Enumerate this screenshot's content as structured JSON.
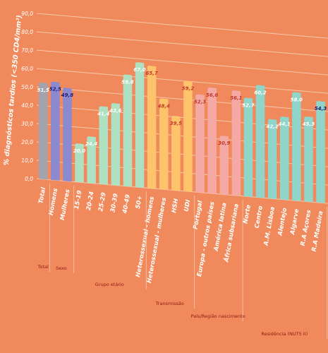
{
  "chart_data": {
    "type": "bar",
    "title": "",
    "ylabel": "% diagnósticos tardios (<350 CD4/mm³)",
    "xlabel": "",
    "ylim": [
      0,
      90
    ],
    "y_ticks": [
      "0,0",
      "10,0",
      "20,0",
      "30,0",
      "40,0",
      "50,0",
      "60,0",
      "70,0",
      "80,0",
      "90,0"
    ],
    "grid": true,
    "categories": [
      "Total",
      "Homens",
      "Mulheres",
      "15-19",
      "20-24",
      "25-29",
      "30-39",
      "40-49",
      "50+",
      "Heterossexual - homens",
      "Heterossexual - mulheres",
      "HSH",
      "UDI",
      "Portugal",
      "Europa - outros países",
      "América latina",
      "África subsariana",
      "Norte",
      "Centro",
      "A.M. Lisboa",
      "Alentejo",
      "Algarve",
      "R.A Açores",
      "R.A Madeira"
    ],
    "values": [
      51.5,
      52.5,
      49.8,
      20.0,
      24.4,
      41.4,
      43.6,
      59.8,
      67.0,
      65.7,
      48.4,
      39.5,
      59.2,
      52.3,
      56.6,
      30.9,
      56.1,
      52.7,
      60.2,
      42.2,
      44.1,
      58.0,
      45.3,
      54.3
    ],
    "value_labels": [
      "51,5",
      "52,5",
      "49,8",
      "20,0",
      "24,4",
      "41,4",
      "43,6",
      "59,8",
      "67,0",
      "65,7",
      "48,4",
      "39,5",
      "59,2",
      "52,3",
      "56,6",
      "30,9",
      "56,1",
      "52,7",
      "60,2",
      "42,2",
      "44,1",
      "58,0",
      "45,3",
      "54,3"
    ],
    "bar_colors": [
      "#a3a3ad",
      "#8b8ad0",
      "#8b8ad0",
      "#aee0c2",
      "#aee0c2",
      "#aee0c2",
      "#aee0c2",
      "#aee0c2",
      "#aee0c2",
      "#ffc36b",
      "#ffc36b",
      "#ffc36b",
      "#ffc36b",
      "#f5a9a5",
      "#f5a9a5",
      "#f5a9a5",
      "#f5a9a5",
      "#8fd5c9",
      "#8fd5c9",
      "#8fd5c9",
      "#8fd5c9",
      "#8fd5c9",
      "#8fd5c9",
      "#8fd5c9"
    ],
    "label_colors": [
      "#ffffff",
      "#1a1a7a",
      "#1a1a7a",
      "#ffffff",
      "#ffffff",
      "#ffffff",
      "#ffffff",
      "#ffffff",
      "#ffffff",
      "#c0392b",
      "#c0392b",
      "#c0392b",
      "#c0392b",
      "#c0392b",
      "#c0392b",
      "#c0392b",
      "#c0392b",
      "#ffffff",
      "#ffffff",
      "#ffffff",
      "#ffffff",
      "#ffffff",
      "#ffffff",
      "#1a1a7a"
    ],
    "groups": [
      {
        "label": "Total",
        "from": 0,
        "to": 0
      },
      {
        "label": "Sexo",
        "from": 1,
        "to": 2
      },
      {
        "label": "Grupo etário",
        "from": 3,
        "to": 8
      },
      {
        "label": "Transmissão",
        "from": 9,
        "to": 12
      },
      {
        "label": "País/Região nascimento",
        "from": 13,
        "to": 16
      },
      {
        "label": "Residência (NUTS II)",
        "from": 17,
        "to": 23
      }
    ]
  },
  "colors": {
    "background": "#f08a5c",
    "grid": "#f6c9ad",
    "axis_text": "#ffffff",
    "category_text": "#8b1a12",
    "group_text": "#8b1a12"
  }
}
